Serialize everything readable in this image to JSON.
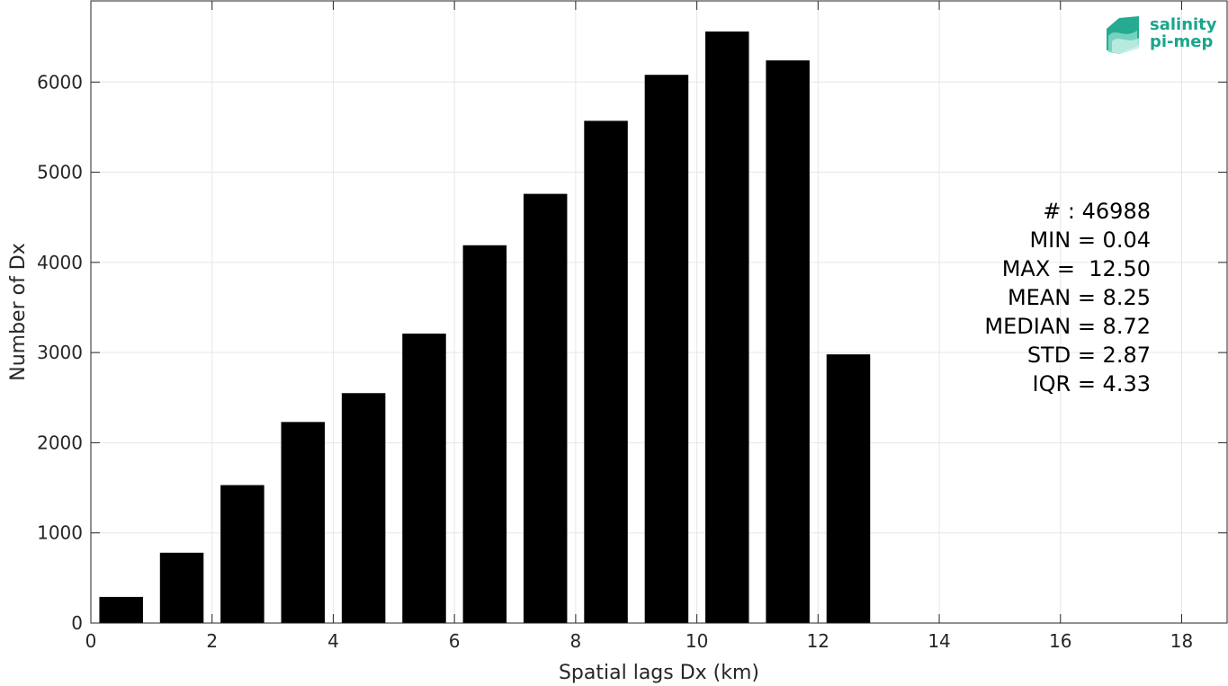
{
  "chart_data": {
    "type": "bar",
    "x": [
      0.5,
      1.5,
      2.5,
      3.5,
      4.5,
      5.5,
      6.5,
      7.5,
      8.5,
      9.5,
      10.5,
      11.5,
      12.5
    ],
    "bin_width": 1,
    "values": [
      290,
      780,
      1530,
      2230,
      2550,
      3210,
      4190,
      4760,
      5570,
      6080,
      6560,
      6240,
      2980
    ],
    "bar_color": "#000000",
    "title": "",
    "xlabel": "Spatial lags Dx (km)",
    "ylabel": "Number of Dx",
    "xlim": [
      0,
      18.75
    ],
    "ylim": [
      0,
      6900
    ],
    "xticks": [
      0,
      2,
      4,
      6,
      8,
      10,
      12,
      14,
      16,
      18
    ],
    "yticks": [
      0,
      1000,
      2000,
      3000,
      4000,
      5000,
      6000
    ],
    "grid": true,
    "annotation_lines": [
      "# : 46988",
      "MIN = 0.04",
      "MAX =  12.50",
      "MEAN = 8.25",
      "MEDIAN = 8.72",
      "STD = 2.87",
      "IQR = 4.33"
    ]
  },
  "logo": {
    "line1": "salinity",
    "line2": "pi-mep",
    "color": "#1aa58c"
  }
}
